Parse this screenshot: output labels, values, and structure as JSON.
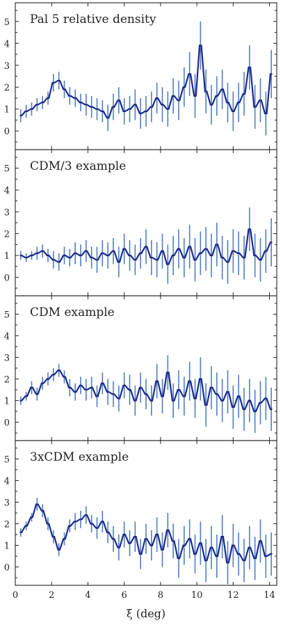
{
  "chart_data": {
    "type": "line",
    "xlabel": "ξ (deg)",
    "x_ticks": [
      "0",
      "2",
      "4",
      "6",
      "8",
      "10",
      "12",
      "14"
    ],
    "xlim": [
      0,
      14.4
    ],
    "shared_x_axis": true,
    "panels": [
      {
        "title": "Pal 5 relative density",
        "ylim": [
          -0.85,
          5.85
        ],
        "y_ticks": [
          "0",
          "1",
          "2",
          "3",
          "4",
          "5"
        ],
        "step_width": 0.1,
        "series": [
          {
            "x": [
              0.3,
              0.6,
              0.9,
              1.2,
              1.5,
              1.8,
              2.1,
              2.4,
              2.7,
              3.0,
              3.3,
              3.6,
              3.9,
              4.2,
              4.5,
              4.8,
              5.1,
              5.4,
              5.7,
              6.0,
              6.3,
              6.6,
              6.9,
              7.2,
              7.5,
              7.8,
              8.1,
              8.4,
              8.7,
              9.0,
              9.3,
              9.6,
              9.9,
              10.2,
              10.5,
              10.8,
              11.1,
              11.4,
              11.7,
              12.0,
              12.3,
              12.6,
              12.9,
              13.2,
              13.5,
              13.8,
              14.1
            ],
            "y": [
              0.7,
              0.9,
              1.0,
              1.2,
              1.3,
              1.5,
              2.2,
              2.3,
              1.9,
              1.6,
              1.5,
              1.3,
              1.2,
              1.1,
              1.0,
              0.9,
              0.6,
              1.1,
              1.4,
              0.9,
              1.0,
              1.2,
              0.8,
              0.9,
              1.1,
              1.5,
              1.2,
              1.0,
              1.6,
              1.4,
              2.0,
              2.6,
              1.6,
              3.9,
              1.8,
              1.2,
              1.6,
              1.9,
              1.3,
              0.9,
              1.3,
              1.7,
              2.9,
              1.1,
              1.4,
              0.8,
              2.6
            ],
            "err": [
              0.3,
              0.3,
              0.3,
              0.3,
              0.3,
              0.3,
              0.4,
              0.4,
              0.4,
              0.4,
              0.4,
              0.4,
              0.5,
              0.5,
              0.5,
              0.5,
              0.6,
              0.6,
              0.6,
              0.6,
              0.6,
              0.7,
              0.7,
              0.7,
              0.7,
              0.7,
              0.8,
              0.8,
              0.8,
              0.9,
              0.9,
              1.0,
              1.0,
              1.1,
              1.0,
              0.9,
              0.9,
              0.9,
              0.9,
              0.9,
              0.9,
              1.0,
              1.0,
              1.0,
              1.0,
              1.0,
              1.1
            ]
          }
        ]
      },
      {
        "title": "CDM/3 example",
        "ylim": [
          -0.85,
          5.85
        ],
        "y_ticks": [
          "0",
          "1",
          "2",
          "3",
          "4",
          "5"
        ],
        "step_width": 0.1,
        "series": [
          {
            "x": [
              0.3,
              0.6,
              0.9,
              1.2,
              1.5,
              1.8,
              2.1,
              2.4,
              2.7,
              3.0,
              3.3,
              3.6,
              3.9,
              4.2,
              4.5,
              4.8,
              5.1,
              5.4,
              5.7,
              6.0,
              6.3,
              6.6,
              6.9,
              7.2,
              7.5,
              7.8,
              8.1,
              8.4,
              8.7,
              9.0,
              9.3,
              9.6,
              9.9,
              10.2,
              10.5,
              10.8,
              11.1,
              11.4,
              11.7,
              12.0,
              12.3,
              12.6,
              12.9,
              13.2,
              13.5,
              13.8,
              14.1
            ],
            "y": [
              1.0,
              0.9,
              1.0,
              1.1,
              1.2,
              1.0,
              0.8,
              0.7,
              1.0,
              0.9,
              1.1,
              1.0,
              1.2,
              0.9,
              0.8,
              1.1,
              1.0,
              1.2,
              0.7,
              1.3,
              1.0,
              0.8,
              1.1,
              1.4,
              0.9,
              0.8,
              1.2,
              0.6,
              1.0,
              1.3,
              0.9,
              1.4,
              0.8,
              1.1,
              1.3,
              1.0,
              1.5,
              0.9,
              0.7,
              1.2,
              1.1,
              0.9,
              2.2,
              1.0,
              0.8,
              1.2,
              1.6
            ],
            "err": [
              0.2,
              0.2,
              0.2,
              0.3,
              0.3,
              0.3,
              0.4,
              0.4,
              0.4,
              0.4,
              0.5,
              0.5,
              0.5,
              0.5,
              0.6,
              0.6,
              0.6,
              0.6,
              0.7,
              0.7,
              0.7,
              0.7,
              0.7,
              0.8,
              0.8,
              0.8,
              0.8,
              0.9,
              0.9,
              0.9,
              0.9,
              1.0,
              1.0,
              1.0,
              1.0,
              1.0,
              1.0,
              1.0,
              1.0,
              1.0,
              1.0,
              1.0,
              1.0,
              1.0,
              1.0,
              1.0,
              1.1
            ]
          }
        ]
      },
      {
        "title": "CDM example",
        "ylim": [
          -0.85,
          5.85
        ],
        "y_ticks": [
          "0",
          "1",
          "2",
          "3",
          "4",
          "5"
        ],
        "step_width": 0.1,
        "series": [
          {
            "x": [
              0.3,
              0.6,
              0.9,
              1.2,
              1.5,
              1.8,
              2.1,
              2.4,
              2.7,
              3.0,
              3.3,
              3.6,
              3.9,
              4.2,
              4.5,
              4.8,
              5.1,
              5.4,
              5.7,
              6.0,
              6.3,
              6.6,
              6.9,
              7.2,
              7.5,
              7.8,
              8.1,
              8.4,
              8.7,
              9.0,
              9.3,
              9.6,
              9.9,
              10.2,
              10.5,
              10.8,
              11.1,
              11.4,
              11.7,
              12.0,
              12.3,
              12.6,
              12.9,
              13.2,
              13.5,
              13.8,
              14.1
            ],
            "y": [
              1.0,
              1.2,
              1.6,
              1.3,
              1.8,
              2.0,
              2.2,
              2.4,
              2.1,
              1.6,
              1.4,
              1.7,
              1.5,
              1.6,
              1.2,
              1.8,
              1.4,
              1.3,
              1.1,
              1.7,
              1.5,
              1.0,
              1.6,
              1.3,
              1.0,
              1.9,
              1.2,
              2.3,
              1.0,
              1.5,
              1.2,
              1.9,
              1.1,
              2.0,
              0.8,
              1.6,
              1.3,
              1.0,
              1.4,
              0.7,
              1.2,
              0.6,
              1.0,
              0.5,
              0.9,
              1.1,
              0.6
            ],
            "err": [
              0.2,
              0.2,
              0.3,
              0.3,
              0.3,
              0.3,
              0.3,
              0.3,
              0.3,
              0.4,
              0.4,
              0.4,
              0.5,
              0.5,
              0.5,
              0.5,
              0.6,
              0.6,
              0.6,
              0.6,
              0.7,
              0.7,
              0.7,
              0.7,
              0.7,
              0.8,
              0.8,
              0.8,
              0.8,
              0.9,
              0.9,
              0.9,
              0.9,
              1.0,
              1.0,
              1.0,
              1.0,
              1.0,
              1.0,
              1.0,
              1.0,
              1.0,
              1.0,
              1.0,
              1.0,
              1.0,
              1.0
            ]
          }
        ]
      },
      {
        "title": "3xCDM example",
        "ylim": [
          -0.85,
          5.85
        ],
        "y_ticks": [
          "0",
          "1",
          "2",
          "3",
          "4",
          "5"
        ],
        "step_width": 0.1,
        "series": [
          {
            "x": [
              0.3,
              0.6,
              0.9,
              1.2,
              1.5,
              1.8,
              2.1,
              2.4,
              2.7,
              3.0,
              3.3,
              3.6,
              3.9,
              4.2,
              4.5,
              4.8,
              5.1,
              5.4,
              5.7,
              6.0,
              6.3,
              6.6,
              6.9,
              7.2,
              7.5,
              7.8,
              8.1,
              8.4,
              8.7,
              9.0,
              9.3,
              9.6,
              9.9,
              10.2,
              10.5,
              10.8,
              11.1,
              11.4,
              11.7,
              12.0,
              12.3,
              12.6,
              12.9,
              13.2,
              13.5,
              13.8,
              14.1
            ],
            "y": [
              1.6,
              1.9,
              2.3,
              2.9,
              2.6,
              2.0,
              1.4,
              0.8,
              1.3,
              1.9,
              2.1,
              2.2,
              2.4,
              2.0,
              1.8,
              2.1,
              1.6,
              1.3,
              0.9,
              1.5,
              1.1,
              1.4,
              0.6,
              1.3,
              1.0,
              1.5,
              0.8,
              1.7,
              1.2,
              0.4,
              1.0,
              1.3,
              0.6,
              1.1,
              0.3,
              0.9,
              0.5,
              1.4,
              0.2,
              1.0,
              0.6,
              0.3,
              0.9,
              0.4,
              1.2,
              0.5,
              0.6
            ],
            "err": [
              0.2,
              0.2,
              0.2,
              0.3,
              0.3,
              0.3,
              0.3,
              0.3,
              0.3,
              0.3,
              0.4,
              0.4,
              0.4,
              0.4,
              0.5,
              0.5,
              0.5,
              0.6,
              0.6,
              0.6,
              0.6,
              0.7,
              0.7,
              0.7,
              0.7,
              0.8,
              0.8,
              0.8,
              0.8,
              0.9,
              0.9,
              0.9,
              0.9,
              1.0,
              1.0,
              1.0,
              1.0,
              1.0,
              1.0,
              1.0,
              1.0,
              1.0,
              1.0,
              1.0,
              1.0,
              1.0,
              1.0
            ]
          }
        ]
      }
    ],
    "colors": {
      "step": "#1c2a8c",
      "errorbar": "#4f7fc0",
      "axes": "#222222"
    },
    "grid": false,
    "legend": "none"
  }
}
